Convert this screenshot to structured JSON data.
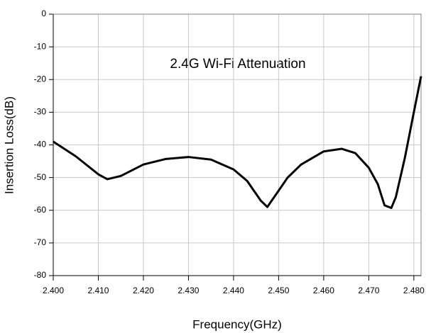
{
  "chart_data": {
    "type": "line",
    "title": "2.4G Wi-Fi Attenuation",
    "x_label": "Frequency(GHz)",
    "y_label": "Insertion Loss(dB)",
    "x": [
      2.4,
      2.405,
      2.41,
      2.412,
      2.415,
      2.42,
      2.425,
      2.43,
      2.435,
      2.44,
      2.443,
      2.446,
      2.4475,
      2.449,
      2.452,
      2.455,
      2.46,
      2.464,
      2.467,
      2.47,
      2.472,
      2.4735,
      2.475,
      2.476,
      2.478,
      2.48,
      2.4816
    ],
    "values": [
      -39,
      -43.5,
      -49,
      -50.5,
      -49.5,
      -46,
      -44.3,
      -43.7,
      -44.5,
      -47.5,
      -51,
      -57,
      -59,
      -56,
      -50,
      -46,
      -42,
      -41.2,
      -42.5,
      -47,
      -52,
      -58.5,
      -59.3,
      -56,
      -44,
      -30,
      -19
    ],
    "color": "#000000",
    "xlim": [
      2.4,
      2.4816
    ],
    "ylim": [
      -80,
      0
    ],
    "xticks": [
      {
        "value": 2.4,
        "label": "2.400"
      },
      {
        "value": 2.41,
        "label": "2.410"
      },
      {
        "value": 2.42,
        "label": "2.420"
      },
      {
        "value": 2.43,
        "label": "2.430"
      },
      {
        "value": 2.44,
        "label": "2.440"
      },
      {
        "value": 2.45,
        "label": "2.450"
      },
      {
        "value": 2.46,
        "label": "2.460"
      },
      {
        "value": 2.47,
        "label": "2.470"
      },
      {
        "value": 2.48,
        "label": "2.480"
      }
    ],
    "yticks": [
      0,
      -10,
      -20,
      -30,
      -40,
      -50,
      -60,
      -70,
      -80
    ],
    "grid": true
  }
}
